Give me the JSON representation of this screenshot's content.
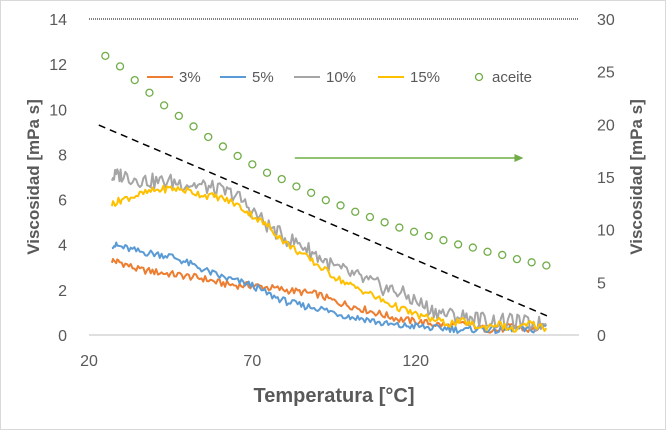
{
  "chart_data": {
    "type": "line",
    "xlabel": "Temperatura [°C]",
    "ylabel_left": "Viscosidad  [mPa s]",
    "ylabel_right": "Viscosidad  [mPa s]",
    "xlim": [
      20,
      170
    ],
    "ylim_left": [
      0,
      14
    ],
    "ylim_right": [
      0,
      30
    ],
    "x_ticks": [
      "20",
      "70",
      "120"
    ],
    "y_left_ticks": [
      "0",
      "2",
      "4",
      "6",
      "8",
      "10",
      "12",
      "14"
    ],
    "y_right_ticks": [
      "0",
      "5",
      "10",
      "15",
      "20",
      "25",
      "30"
    ],
    "grid": false,
    "legend_position": "top",
    "series": [
      {
        "name": "3%",
        "axis": "left",
        "color": "#ED7D31",
        "x": [
          27,
          30,
          35,
          40,
          45,
          50,
          55,
          60,
          65,
          70,
          75,
          80,
          85,
          90,
          95,
          100,
          105,
          110,
          115,
          120,
          125,
          130,
          135,
          140,
          145,
          150,
          155,
          160
        ],
        "values": [
          3.3,
          3.2,
          2.9,
          2.8,
          2.7,
          2.6,
          2.5,
          2.3,
          2.2,
          2.2,
          2.1,
          2.0,
          1.9,
          1.8,
          1.5,
          1.3,
          1.1,
          0.9,
          0.7,
          0.6,
          0.5,
          0.4,
          0.5,
          0.3,
          0.2,
          0.4,
          0.2,
          0.4
        ]
      },
      {
        "name": "5%",
        "axis": "left",
        "color": "#5B9BD5",
        "x": [
          27,
          30,
          35,
          40,
          45,
          50,
          55,
          60,
          65,
          70,
          75,
          80,
          85,
          90,
          95,
          100,
          105,
          110,
          115,
          120,
          125,
          130,
          135,
          140,
          145,
          150,
          155,
          160
        ],
        "values": [
          4.0,
          3.9,
          3.7,
          3.6,
          3.5,
          3.2,
          2.9,
          2.6,
          2.4,
          2.2,
          1.8,
          1.5,
          1.3,
          1.2,
          1.0,
          0.8,
          0.7,
          0.5,
          0.4,
          0.4,
          0.3,
          0.3,
          0.2,
          0.3,
          0.2,
          0.3,
          0.2,
          0.4
        ]
      },
      {
        "name": "10%",
        "axis": "left",
        "color": "#A5A5A5",
        "x": [
          27,
          30,
          35,
          40,
          45,
          50,
          55,
          60,
          65,
          70,
          75,
          80,
          85,
          90,
          95,
          100,
          105,
          110,
          115,
          120,
          125,
          130,
          135,
          140,
          145,
          150,
          155,
          160
        ],
        "values": [
          7.0,
          7.1,
          6.9,
          6.8,
          6.8,
          6.7,
          6.6,
          6.4,
          6.2,
          5.5,
          4.8,
          4.3,
          4.0,
          3.5,
          3.0,
          2.7,
          2.4,
          2.1,
          1.9,
          1.5,
          1.1,
          0.9,
          0.8,
          0.7,
          0.6,
          0.6,
          0.5,
          0.5
        ]
      },
      {
        "name": "15%",
        "axis": "left",
        "color": "#FFC000",
        "x": [
          27,
          30,
          35,
          40,
          45,
          50,
          55,
          60,
          65,
          70,
          75,
          80,
          85,
          90,
          95,
          100,
          105,
          110,
          115,
          120,
          125,
          130,
          135,
          140,
          145,
          150,
          155,
          160
        ],
        "values": [
          5.8,
          6.0,
          6.2,
          6.4,
          6.5,
          6.4,
          6.2,
          6.1,
          5.8,
          5.3,
          4.8,
          4.1,
          3.6,
          3.1,
          2.6,
          2.2,
          1.9,
          1.5,
          1.2,
          0.9,
          0.7,
          0.5,
          0.6,
          0.3,
          0.5,
          0.2,
          0.5,
          0.3
        ]
      },
      {
        "name": "aceite",
        "axis": "right",
        "color": "#70AD47",
        "marker": "circle-open",
        "x": [
          25,
          29.5,
          34,
          38.5,
          43,
          47.5,
          52,
          56.5,
          61,
          65.5,
          70,
          74.5,
          79,
          83.5,
          88,
          92.5,
          97,
          101.5,
          106,
          110.5,
          115,
          119.5,
          124,
          128.5,
          133,
          137.5,
          142,
          146.5,
          151,
          155.5,
          160
        ],
        "values": [
          26.5,
          25.5,
          24.2,
          23.0,
          21.8,
          20.8,
          19.8,
          18.8,
          17.9,
          17.0,
          16.2,
          15.4,
          14.8,
          14.1,
          13.5,
          12.8,
          12.3,
          11.7,
          11.2,
          10.7,
          10.2,
          9.8,
          9.4,
          9.0,
          8.6,
          8.3,
          7.9,
          7.6,
          7.2,
          6.9,
          6.6
        ]
      }
    ],
    "annotations": {
      "trend_line": {
        "axis": "left",
        "style": "dashed",
        "color": "#000000",
        "x": [
          23,
          161
        ],
        "values": [
          9.3,
          0.8
        ]
      },
      "arrow": {
        "axis": "right",
        "color": "#70AD47",
        "x": [
          83,
          153
        ],
        "values": [
          16.8,
          16.8
        ]
      }
    }
  }
}
